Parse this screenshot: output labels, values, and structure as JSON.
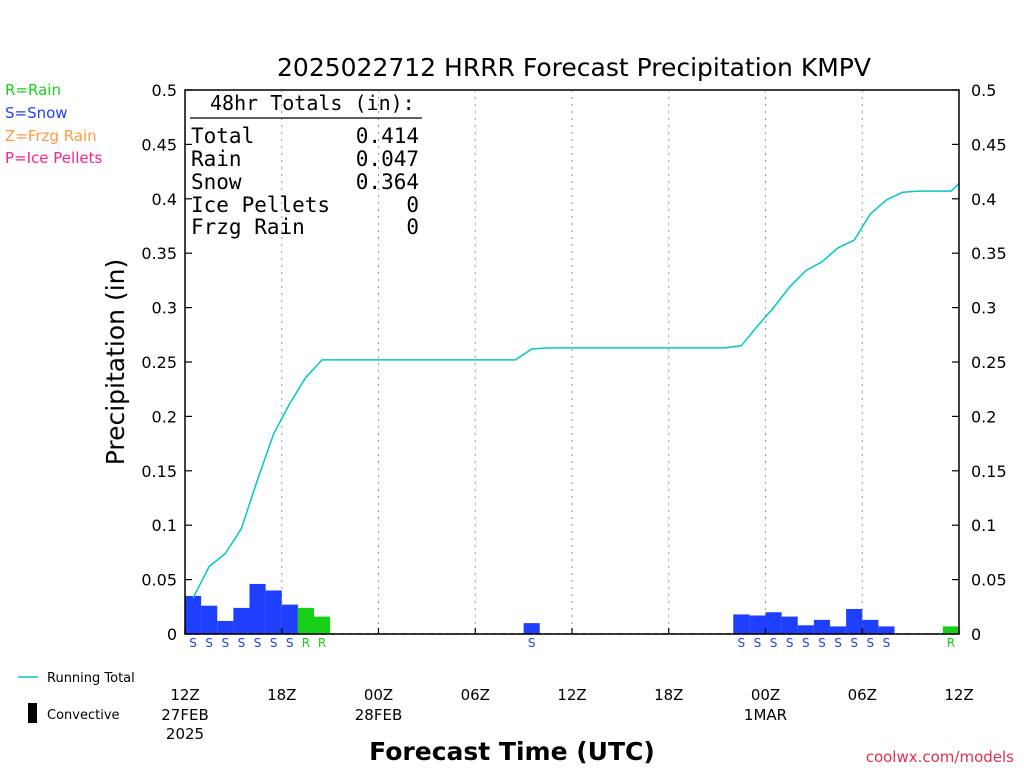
{
  "chart_data": {
    "type": "bar",
    "title": "2025022712 HRRR Forecast Precipitation KMPV",
    "xlabel": "Forecast Time (UTC)",
    "ylabel": "Precipitation (in)",
    "ylim": [
      0,
      0.5
    ],
    "y_ticks": [
      "0",
      "0.05",
      "0.1",
      "0.15",
      "0.2",
      "0.25",
      "0.3",
      "0.35",
      "0.4",
      "0.45",
      "0.5"
    ],
    "x_range_hours": [
      0,
      48
    ],
    "x_ticks": [
      {
        "hour": 0,
        "label": "12Z",
        "sub1": "27FEB",
        "sub2": "2025"
      },
      {
        "hour": 6,
        "label": "18Z",
        "sub1": "",
        "sub2": ""
      },
      {
        "hour": 12,
        "label": "00Z",
        "sub1": "28FEB",
        "sub2": ""
      },
      {
        "hour": 18,
        "label": "06Z",
        "sub1": "",
        "sub2": ""
      },
      {
        "hour": 24,
        "label": "12Z",
        "sub1": "",
        "sub2": ""
      },
      {
        "hour": 30,
        "label": "18Z",
        "sub1": "",
        "sub2": ""
      },
      {
        "hour": 36,
        "label": "00Z",
        "sub1": "1MAR",
        "sub2": ""
      },
      {
        "hour": 42,
        "label": "06Z",
        "sub1": "",
        "sub2": ""
      },
      {
        "hour": 48,
        "label": "12Z",
        "sub1": "",
        "sub2": ""
      }
    ],
    "grid": "vertical dotted at 6-hour ticks",
    "bars": [
      {
        "hour": 1,
        "value": 0.035,
        "type": "S"
      },
      {
        "hour": 2,
        "value": 0.026,
        "type": "S"
      },
      {
        "hour": 3,
        "value": 0.012,
        "type": "S"
      },
      {
        "hour": 4,
        "value": 0.024,
        "type": "S"
      },
      {
        "hour": 5,
        "value": 0.046,
        "type": "S"
      },
      {
        "hour": 6,
        "value": 0.04,
        "type": "S"
      },
      {
        "hour": 7,
        "value": 0.027,
        "type": "S"
      },
      {
        "hour": 8,
        "value": 0.024,
        "type": "R"
      },
      {
        "hour": 9,
        "value": 0.016,
        "type": "R"
      },
      {
        "hour": 22,
        "value": 0.01,
        "type": "S"
      },
      {
        "hour": 35,
        "value": 0.018,
        "type": "S"
      },
      {
        "hour": 36,
        "value": 0.017,
        "type": "S"
      },
      {
        "hour": 37,
        "value": 0.02,
        "type": "S"
      },
      {
        "hour": 38,
        "value": 0.016,
        "type": "S"
      },
      {
        "hour": 39,
        "value": 0.008,
        "type": "S"
      },
      {
        "hour": 40,
        "value": 0.013,
        "type": "S"
      },
      {
        "hour": 41,
        "value": 0.007,
        "type": "S"
      },
      {
        "hour": 42,
        "value": 0.023,
        "type": "S"
      },
      {
        "hour": 43,
        "value": 0.013,
        "type": "S"
      },
      {
        "hour": 44,
        "value": 0.007,
        "type": "S"
      },
      {
        "hour": 48,
        "value": 0.007,
        "type": "R"
      }
    ],
    "running_total": [
      [
        0.5,
        0.033
      ],
      [
        1.5,
        0.062
      ],
      [
        2.5,
        0.074
      ],
      [
        3.5,
        0.097
      ],
      [
        4.5,
        0.142
      ],
      [
        5.5,
        0.184
      ],
      [
        6.5,
        0.212
      ],
      [
        7.5,
        0.236
      ],
      [
        8.5,
        0.252
      ],
      [
        9.5,
        0.252
      ],
      [
        20.5,
        0.252
      ],
      [
        21.5,
        0.262
      ],
      [
        22.5,
        0.263
      ],
      [
        33.5,
        0.263
      ],
      [
        34.5,
        0.265
      ],
      [
        35.5,
        0.283
      ],
      [
        36.5,
        0.3
      ],
      [
        37.5,
        0.319
      ],
      [
        38.5,
        0.334
      ],
      [
        39.5,
        0.342
      ],
      [
        40.5,
        0.355
      ],
      [
        41.5,
        0.362
      ],
      [
        42.5,
        0.386
      ],
      [
        43.5,
        0.399
      ],
      [
        44.5,
        0.406
      ],
      [
        45.5,
        0.407
      ],
      [
        46.5,
        0.407
      ],
      [
        47.5,
        0.407
      ],
      [
        48,
        0.414
      ]
    ],
    "type_colors": {
      "S": "#1f3fff",
      "R": "#18d018",
      "Z": "#ff9a40",
      "P": "#ff2288"
    },
    "line_color": "#00c8c8"
  },
  "totals_box": {
    "heading": "48hr Totals (in):",
    "rows": [
      {
        "label": "Total",
        "value": "0.414"
      },
      {
        "label": "Rain",
        "value": "0.047"
      },
      {
        "label": "Snow",
        "value": "0.364"
      },
      {
        "label": "Ice Pellets",
        "value": "0"
      },
      {
        "label": "Frzg Rain",
        "value": "0"
      }
    ]
  },
  "type_legend": [
    {
      "text": "R=Rain",
      "color": "#18d018"
    },
    {
      "text": "S=Snow",
      "color": "#1f3fff"
    },
    {
      "text": "Z=Frzg Rain",
      "color": "#ff9a40"
    },
    {
      "text": "P=Ice Pellets",
      "color": "#ff2288"
    }
  ],
  "bottom_legend": {
    "running_total": "Running Total",
    "convective": "Convective"
  },
  "credit": "coolwx.com/models"
}
